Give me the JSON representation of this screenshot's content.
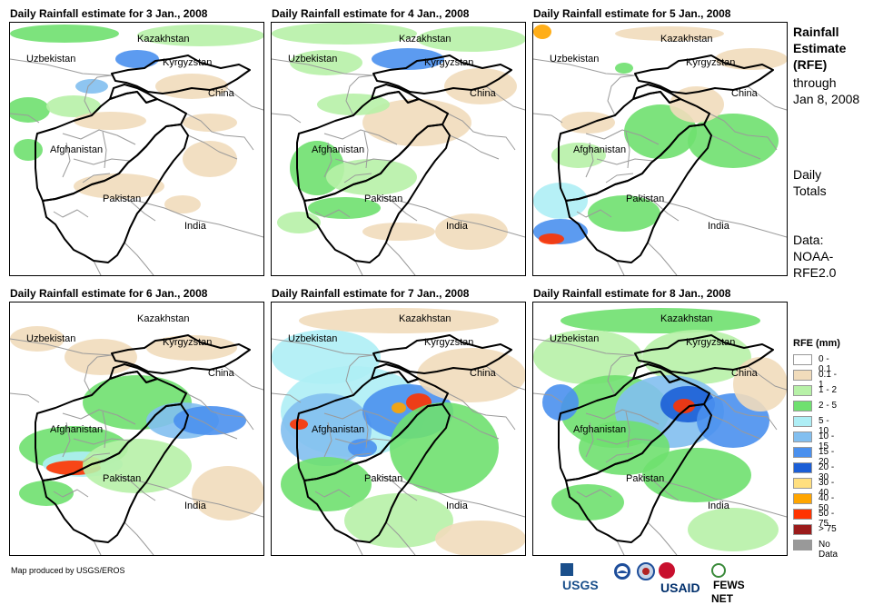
{
  "panels": [
    {
      "title": "Daily Rainfall estimate for 3 Jan., 2008"
    },
    {
      "title": "Daily Rainfall estimate for 4 Jan., 2008"
    },
    {
      "title": "Daily Rainfall estimate for 5 Jan., 2008"
    },
    {
      "title": "Daily Rainfall estimate for 6 Jan., 2008"
    },
    {
      "title": "Daily Rainfall estimate for 7 Jan., 2008"
    },
    {
      "title": "Daily Rainfall estimate for 8 Jan., 2008"
    }
  ],
  "places": {
    "kazakhstan": "Kazakhstan",
    "uzbekistan": "Uzbekistan",
    "kyrgyzstan": "Kyrgyzstan",
    "china": "China",
    "afghanistan": "Afghanistan",
    "pakistan": "Pakistan",
    "india": "India"
  },
  "side_info": {
    "title_line1": "Rainfall",
    "title_line2": "Estimate",
    "title_line3": "(RFE)",
    "through": "through",
    "date": "Jan 8, 2008",
    "daily1": "Daily",
    "daily2": "Totals",
    "data1": "Data:",
    "data2": "NOAA-",
    "data3": "RFE2.0"
  },
  "legend": {
    "title": "RFE (mm)",
    "items": [
      {
        "label": "0 - 0.1",
        "color": "#ffffff"
      },
      {
        "label": "0.1 - 1",
        "color": "#f1dcbb"
      },
      {
        "label": "1 - 2",
        "color": "#b7f1a7"
      },
      {
        "label": "2 - 5",
        "color": "#6fe06f"
      },
      {
        "label": "5 - 10",
        "color": "#aeeef5"
      },
      {
        "label": "10 - 15",
        "color": "#82bff0"
      },
      {
        "label": "15 - 20",
        "color": "#4a90ee"
      },
      {
        "label": "20 - 30",
        "color": "#1b5ed6"
      },
      {
        "label": "30 - 40",
        "color": "#ffdf7f"
      },
      {
        "label": "40 - 50",
        "color": "#ffa500"
      },
      {
        "label": "50 - 75",
        "color": "#ff3300"
      },
      {
        "label": "> 75",
        "color": "#9b1b1b"
      },
      {
        "label": "No Data",
        "color": "#999999"
      }
    ]
  },
  "footer": {
    "credit": "Map produced by USGS/EROS"
  },
  "logos": {
    "usgs": "USGS",
    "usaid": "USAID",
    "fewsnet": "FEWS NET"
  }
}
